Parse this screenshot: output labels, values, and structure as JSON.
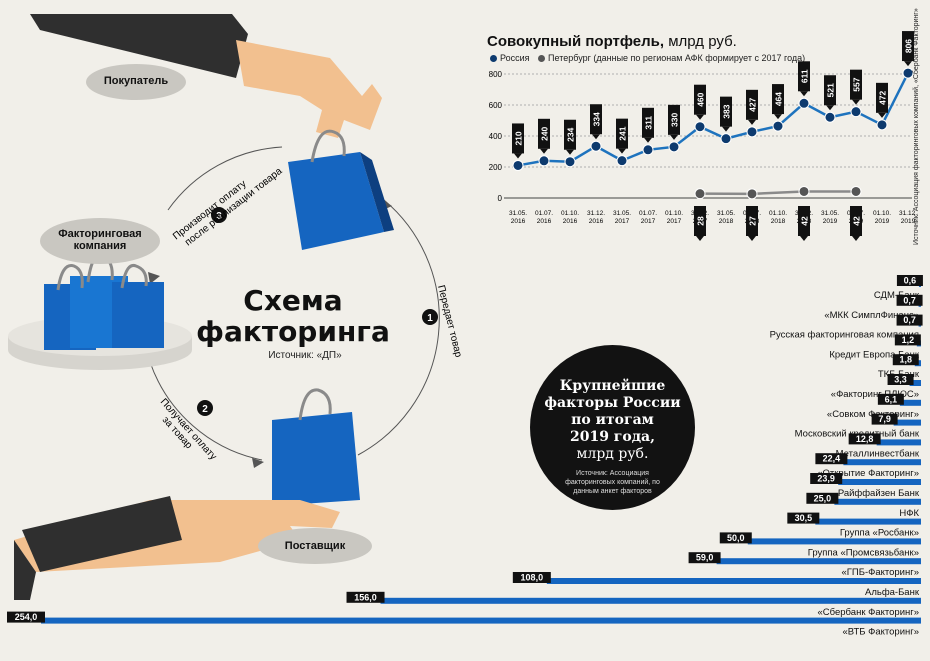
{
  "scheme": {
    "title_line1": "Схема",
    "title_line2": "факторинга",
    "source": "Источник: «ДП»",
    "buyer_label": "Покупатель",
    "factoring_label_line1": "Факторинговая",
    "factoring_label_line2": "компания",
    "supplier_label": "Поставщик",
    "steps": [
      {
        "num": "1",
        "text_line1": "Передает товар",
        "text_line2": ""
      },
      {
        "num": "2",
        "text_line1": "Получает оплату",
        "text_line2": "за товар"
      },
      {
        "num": "3",
        "text_line1": "Производит оплату",
        "text_line2": "после реализации товара"
      }
    ],
    "colors": {
      "bag": "#1565c0",
      "bag_dark": "#0d3f80",
      "skin": "#f2c08f",
      "sleeve": "#2f2f2f",
      "pill": "#c9c7c1"
    }
  },
  "line_chart": {
    "title_bold": "Совокупный портфель,",
    "title_rest": " млрд руб.",
    "legend": [
      {
        "name": "Россия",
        "color": "#0d3a6e"
      },
      {
        "name": "Петербург (данные по регионам АФК формирует с 2017 года)",
        "color": "#555555"
      }
    ],
    "side_source": "Источник: Ассоциация факторинговых компаний, «Сбербанк Факторинг»"
  },
  "ranking": {
    "title_line1": "Крупнейшие",
    "title_line2": "факторы России",
    "title_line3": "по итогам",
    "title_line4": "2019 года,",
    "title_line5": "млрд руб.",
    "source": "Источник: Ассоциация факторинговых компаний, по данным анкет факторов"
  },
  "chart_data": [
    {
      "type": "line",
      "title": "Совокупный портфель, млрд руб.",
      "x": [
        "31.05. 2016",
        "01.07. 2016",
        "01.10. 2016",
        "31.12. 2016",
        "31.05. 2017",
        "01.07. 2017",
        "01.10. 2017",
        "31.12. 2017",
        "31.05. 2018",
        "01.07. 2018",
        "01.10. 2018",
        "31.12. 2018",
        "31.05. 2019",
        "01.07. 2019",
        "01.10. 2019",
        "31.12. 2019"
      ],
      "y_ticks": [
        "0",
        "200",
        "400",
        "600",
        "800"
      ],
      "ylim": [
        0,
        800
      ],
      "series": [
        {
          "name": "Россия",
          "values": [
            210,
            240,
            234,
            334,
            241,
            311,
            330,
            460,
            383,
            427,
            464,
            611,
            521,
            557,
            472,
            806
          ]
        },
        {
          "name": "Петербург (данные по регионам АФК формирует с 2017 года)",
          "values": [
            null,
            null,
            null,
            null,
            null,
            null,
            null,
            28,
            null,
            27,
            null,
            42,
            null,
            42,
            null,
            null
          ]
        }
      ],
      "grid": true
    },
    {
      "type": "bar",
      "orientation": "horizontal",
      "title": "Крупнейшие факторы России по итогам 2019 года, млрд руб.",
      "categories": [
        "СДМ-Банк",
        "«МКК СимплФинанс»",
        "Русская факторинговая компания",
        "Кредит Европа Банк",
        "ТКБ Банк",
        "«Факторинг ПЛЮС»",
        "«Совком Факторинг»",
        "Московский кредитный банк",
        "Металлинвестбанк",
        "«Открытие Факторинг»",
        "Райффайзен Банк",
        "НФК",
        "Группа «Росбанк»",
        "Группа «Промсвязьбанк»",
        "«ГПБ-Факторинг»",
        "Альфа-Банк",
        "«Сбербанк Факторинг»",
        "«ВТБ Факторинг»"
      ],
      "values": [
        0.6,
        0.7,
        0.7,
        1.2,
        1.8,
        3.3,
        6.1,
        7.9,
        12.8,
        22.4,
        23.9,
        25.0,
        30.5,
        50.0,
        59.0,
        108.0,
        156.0,
        254.0
      ],
      "value_labels": [
        "0,6",
        "0,7",
        "0,7",
        "1,2",
        "1,8",
        "3,3",
        "6,1",
        "7,9",
        "12,8",
        "22,4",
        "23,9",
        "25,0",
        "30,5",
        "50,0",
        "59,0",
        "108,0",
        "156,0",
        "254,0"
      ],
      "xlim": [
        0,
        254
      ],
      "color": "#1565c0"
    }
  ]
}
